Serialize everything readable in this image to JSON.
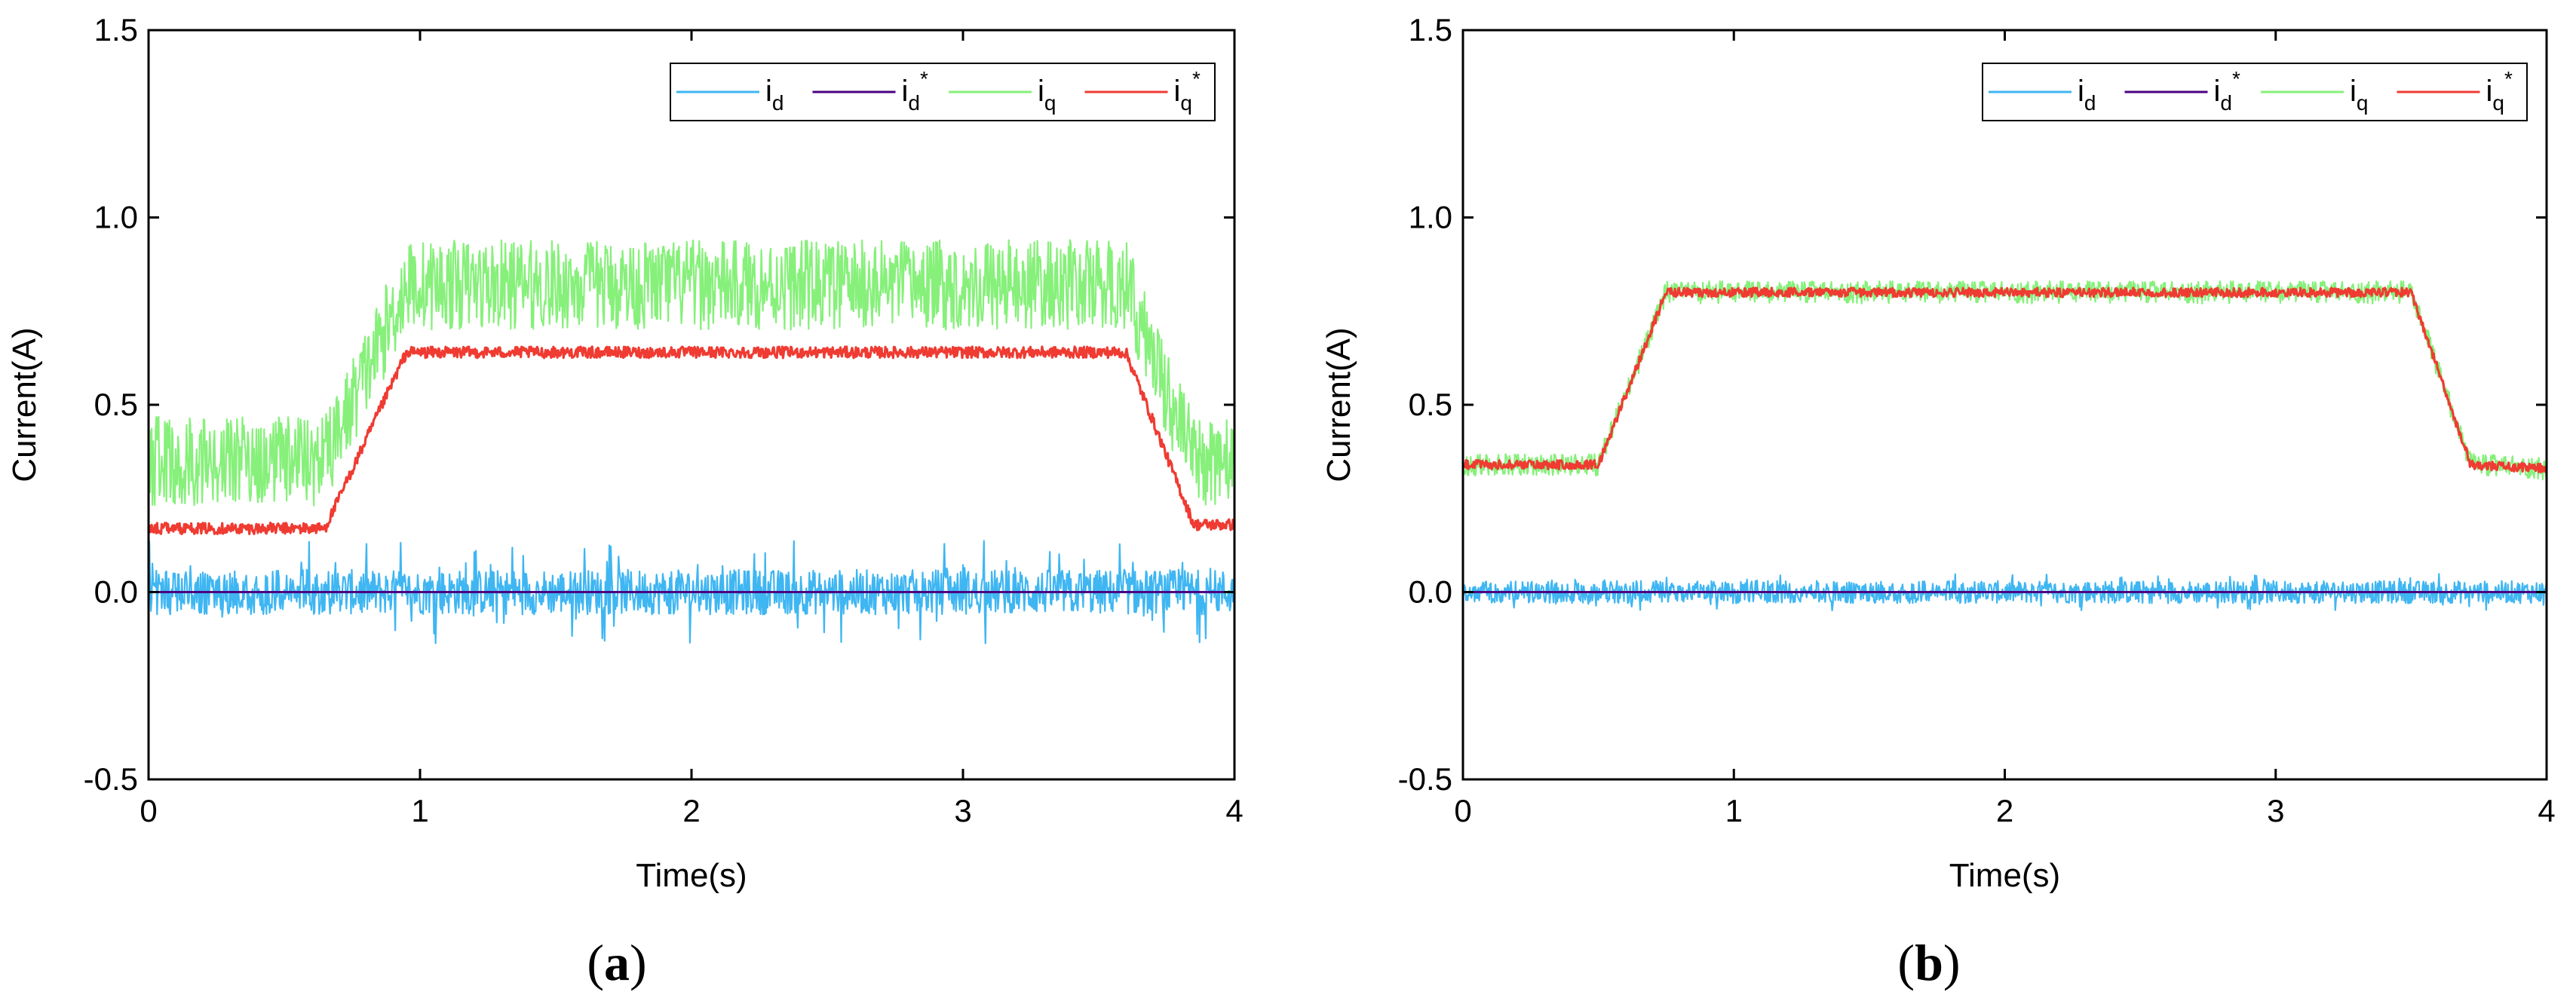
{
  "figure": {
    "panels": [
      "(a)",
      "(b)"
    ]
  },
  "chart_data": [
    {
      "type": "line",
      "panel_label": "a",
      "xlabel": "Time(s)",
      "ylabel": "Current(A)",
      "xlim": [
        0,
        4
      ],
      "ylim": [
        -0.5,
        1.5
      ],
      "xticks": [
        0,
        1,
        2,
        3,
        4
      ],
      "yticks": [
        -0.5,
        0.0,
        0.5,
        1.0,
        1.5
      ],
      "ytick_labels": [
        "-0.5",
        "0.0",
        "0.5",
        "1.0",
        "1.5"
      ],
      "legend_position": "top-right",
      "series": [
        {
          "name": "i_d",
          "base": "i",
          "sub": "d",
          "star": false,
          "color": "#3fb6f2",
          "profile": {
            "times": [
              0,
              4
            ],
            "values": [
              0,
              0
            ]
          },
          "noise_amplitude": 0.06,
          "spikes": 0.14
        },
        {
          "name": "i_d*",
          "base": "i",
          "sub": "d",
          "star": true,
          "color": "#4b0082",
          "profile": {
            "times": [
              0,
              4
            ],
            "values": [
              0,
              0
            ]
          },
          "noise_amplitude": 0
        },
        {
          "name": "i_q",
          "base": "i",
          "sub": "q",
          "star": false,
          "color": "#86f07a",
          "profile": {
            "times": [
              0,
              0.65,
              0.95,
              3.6,
              3.85,
              4.0
            ],
            "values": [
              0.35,
              0.35,
              0.82,
              0.82,
              0.35,
              0.35
            ]
          },
          "noise_amplitude": 0.12
        },
        {
          "name": "i_q*",
          "base": "i",
          "sub": "q",
          "star": true,
          "color": "#ef3b32",
          "profile": {
            "times": [
              0,
              0.65,
              0.95,
              3.6,
              3.85,
              4.0
            ],
            "values": [
              0.17,
              0.17,
              0.64,
              0.64,
              0.18,
              0.18
            ]
          },
          "noise_amplitude": 0.015
        }
      ]
    },
    {
      "type": "line",
      "panel_label": "b",
      "xlabel": "Time(s)",
      "ylabel": "Current(A)",
      "xlim": [
        0,
        4
      ],
      "ylim": [
        -0.5,
        1.5
      ],
      "xticks": [
        0,
        1,
        2,
        3,
        4
      ],
      "yticks": [
        -0.5,
        0.0,
        0.5,
        1.0,
        1.5
      ],
      "ytick_labels": [
        "-0.5",
        "0.0",
        "0.5",
        "1.0",
        "1.5"
      ],
      "legend_position": "top-right",
      "series": [
        {
          "name": "i_d",
          "base": "i",
          "sub": "d",
          "star": false,
          "color": "#3fb6f2",
          "profile": {
            "times": [
              0,
              4
            ],
            "values": [
              0,
              0
            ]
          },
          "noise_amplitude": 0.03,
          "spikes": 0.05
        },
        {
          "name": "i_d*",
          "base": "i",
          "sub": "d",
          "star": true,
          "color": "#4b0082",
          "profile": {
            "times": [
              0,
              4
            ],
            "values": [
              0,
              0
            ]
          },
          "noise_amplitude": 0
        },
        {
          "name": "i_q",
          "base": "i",
          "sub": "q",
          "star": false,
          "color": "#86f07a",
          "profile": {
            "times": [
              0,
              0.5,
              0.75,
              3.5,
              3.72,
              4.0
            ],
            "values": [
              0.34,
              0.34,
              0.8,
              0.8,
              0.34,
              0.33
            ]
          },
          "noise_amplitude": 0.03
        },
        {
          "name": "i_q*",
          "base": "i",
          "sub": "q",
          "star": true,
          "color": "#ef3b32",
          "profile": {
            "times": [
              0,
              0.5,
              0.75,
              3.5,
              3.72,
              4.0
            ],
            "values": [
              0.34,
              0.34,
              0.8,
              0.8,
              0.34,
              0.33
            ]
          },
          "noise_amplitude": 0.012
        }
      ]
    }
  ]
}
